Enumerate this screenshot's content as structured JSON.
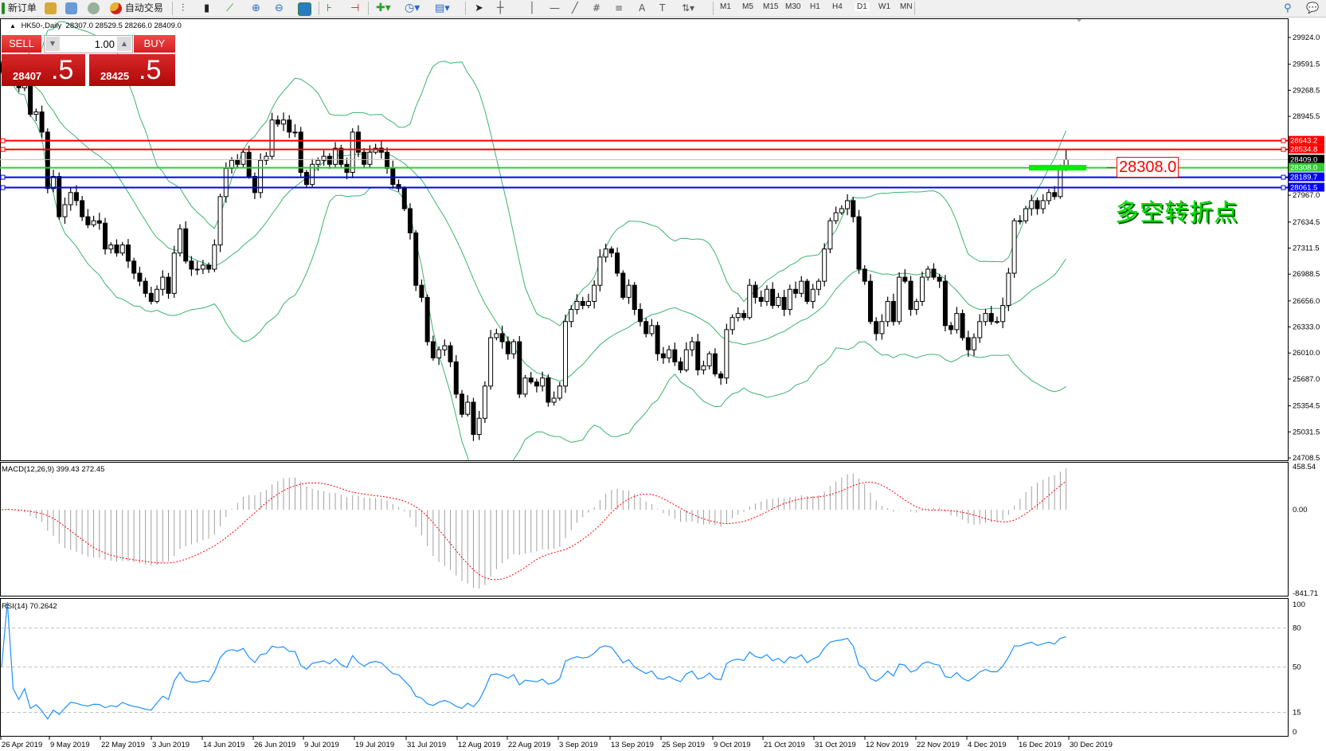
{
  "toolbar": {
    "new_order": "新订单",
    "auto_trading": "自动交易",
    "timeframes": [
      "M1",
      "M5",
      "M15",
      "M30",
      "H1",
      "H4",
      "D1",
      "W1",
      "MN"
    ],
    "active_timeframe": "D1",
    "icons": [
      "new-order-icon",
      "market-watch-icon",
      "navigator-icon",
      "signal-icon",
      "auto-trading-icon",
      "bar-chart-icon",
      "candlestick-icon",
      "line-chart-icon",
      "zoom-in-icon",
      "zoom-out-icon",
      "tile-windows-icon",
      "autoscroll-icon",
      "chart-shift-icon",
      "indicators-icon",
      "periods-clock-icon",
      "templates-icon",
      "cursor-icon",
      "crosshair-icon",
      "vertical-line-icon",
      "horizontal-line-icon",
      "trendline-icon",
      "equidistant-channel-icon",
      "fibonacci-icon",
      "text-icon",
      "text-label-icon",
      "arrows-icon",
      "search-icon",
      "chat-icon"
    ]
  },
  "header": {
    "symbol": "HK50-,Daily",
    "ohlc": "28307.0 28529.5 28266.0 28409.0"
  },
  "trade_panel": {
    "sell_label": "SELL",
    "buy_label": "BUY",
    "lot": "1.00",
    "sell_price_main": "28407",
    "sell_price_dec": ".5",
    "buy_price_main": "28425",
    "buy_price_dec": ".5"
  },
  "annotation": {
    "label": "多空转折点",
    "price_tag": "28308.0"
  },
  "colors": {
    "bollinger": "#3cb371",
    "resistance": "#ff0000",
    "pivot": "#33cc33",
    "support": "#0000ff",
    "bid": "#c0c0c0",
    "rsi": "#1e90ff",
    "macd_signal": "#ff0000",
    "macd_hist": "#a0a0a0"
  },
  "chart_data": [
    {
      "type": "candlestick",
      "panel": "main",
      "title": "HK50-,Daily",
      "indicator": "Bollinger Bands",
      "ylim": [
        24708.5,
        29924.0
      ],
      "y_ticks": [
        "29924.0",
        "29591.5",
        "29268.5",
        "28945.5",
        "27967.0",
        "27634.5",
        "27311.5",
        "26988.5",
        "26656.0",
        "26333.0",
        "26010.0",
        "25687.0",
        "25354.5",
        "25031.5",
        "24708.5"
      ],
      "x_ticks": [
        "26 Apr 2019",
        "9 May 2019",
        "22 May 2019",
        "3 Jun 2019",
        "14 Jun 2019",
        "26 Jun 2019",
        "9 Jul 2019",
        "19 Jul 2019",
        "31 Jul 2019",
        "12 Aug 2019",
        "22 Aug 2019",
        "3 Sep 2019",
        "13 Sep 2019",
        "25 Sep 2019",
        "9 Oct 2019",
        "21 Oct 2019",
        "31 Oct 2019",
        "12 Nov 2019",
        "22 Nov 2019",
        "4 Dec 2019",
        "16 Dec 2019",
        "30 Dec 2019"
      ],
      "levels": [
        {
          "price": 28643.2,
          "label": "28643.2",
          "color": "#ff0000"
        },
        {
          "price": 28534.8,
          "label": "28534.8",
          "color": "#ff0000"
        },
        {
          "price": 28409.0,
          "label": "28409.0",
          "color": "#000000"
        },
        {
          "price": 28308.0,
          "label": "28308.0",
          "color": "#33cc33"
        },
        {
          "price": 28189.7,
          "label": "28189.7",
          "color": "#0000ff"
        },
        {
          "price": 28061.5,
          "label": "28061.5",
          "color": "#0000ff"
        }
      ],
      "last_bar": {
        "open": 28307.0,
        "high": 28529.5,
        "low": 28266.0,
        "close": 28409.0
      },
      "close": [
        29500,
        29600,
        29400,
        29300,
        29350,
        28970,
        29000,
        28750,
        28050,
        28200,
        27700,
        27850,
        28000,
        27900,
        27700,
        27600,
        27650,
        27620,
        27300,
        27350,
        27250,
        27350,
        27150,
        27000,
        26900,
        26750,
        26650,
        26800,
        26950,
        26750,
        27250,
        27550,
        27150,
        27050,
        27050,
        27100,
        27050,
        27350,
        27950,
        28300,
        28400,
        28350,
        28500,
        28200,
        28000,
        28400,
        28450,
        28900,
        28850,
        28900,
        28750,
        28750,
        28250,
        28100,
        28350,
        28400,
        28450,
        28350,
        28550,
        28350,
        28250,
        28750,
        28500,
        28350,
        28500,
        28550,
        28500,
        28300,
        28100,
        28050,
        27800,
        27500,
        26850,
        26700,
        26150,
        25950,
        26050,
        26100,
        25900,
        25500,
        25250,
        25400,
        25000,
        25200,
        25600,
        26200,
        26250,
        26150,
        26000,
        26150,
        25500,
        25700,
        25650,
        25600,
        25700,
        25400,
        25450,
        25600,
        26400,
        26550,
        26650,
        26600,
        26650,
        26850,
        27200,
        27300,
        27250,
        27000,
        26700,
        26850,
        26550,
        26400,
        26250,
        26350,
        26000,
        25950,
        26050,
        25900,
        25800,
        26050,
        26150,
        25800,
        25850,
        26000,
        25750,
        25700,
        26300,
        26450,
        26500,
        26450,
        26850,
        26700,
        26650,
        26800,
        26600,
        26700,
        26550,
        26800,
        26750,
        26900,
        26650,
        26800,
        26900,
        27300,
        27650,
        27750,
        27800,
        27900,
        27700,
        27050,
        26900,
        26400,
        26250,
        26400,
        26650,
        26400,
        26950,
        26900,
        26550,
        26650,
        26950,
        27050,
        26950,
        26900,
        26350,
        26300,
        26500,
        26200,
        26050,
        26200,
        26400,
        26500,
        26400,
        26400,
        26600,
        27000,
        27650,
        27650,
        27800,
        27900,
        27800,
        27900,
        28000,
        27950,
        28300,
        28409
      ]
    },
    {
      "type": "bar",
      "panel": "macd",
      "title": "MACD(12,26,9) 399.43 272.45",
      "ylim": [
        -841.71,
        458.54
      ],
      "y_ticks": [
        "458.54",
        "0.00",
        "-841.71"
      ]
    },
    {
      "type": "line",
      "panel": "rsi",
      "title": "RSI(14) 70.2642",
      "ylim": [
        0,
        100
      ],
      "y_ticks": [
        "100",
        "80",
        "50",
        "15",
        "0"
      ]
    }
  ]
}
